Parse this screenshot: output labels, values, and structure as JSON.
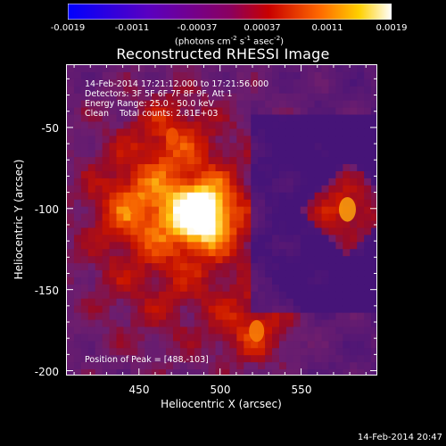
{
  "colorbar": {
    "ticks": [
      "-0.0019",
      "-0.0011",
      "-0.00037",
      "0.00037",
      "0.0011",
      "0.0019"
    ],
    "units_main": "(photons cm",
    "units_exp1": "-2",
    "units_mid1": " s",
    "units_exp2": "-1",
    "units_mid2": " asec",
    "units_exp3": "-2",
    "units_end": ")"
  },
  "title": "Reconstructed RHESSI Image",
  "annotations": {
    "time_range": "14-Feb-2014 17:21:12.000 to 17:21:56.000",
    "detectors": "Detectors: 3F 5F 6F 7F 8F 9F, Att 1",
    "energy": "Energy Range: 25.0 - 50.0 keV",
    "clean": "Clean    Total counts: 2.81E+03",
    "peak": "Position of Peak = [488,-103]"
  },
  "chart_data": {
    "type": "heatmap",
    "title": "Reconstructed RHESSI Image",
    "xlabel": "Heliocentric X (arcsec)",
    "ylabel": "Heliocentric Y (arcsec)",
    "xlim": [
      405,
      597
    ],
    "ylim": [
      -203,
      -11
    ],
    "x_ticks": [
      "450",
      "500",
      "550"
    ],
    "y_ticks": [
      "-50",
      "-100",
      "-150",
      "-200"
    ],
    "color_range": [
      -0.0019,
      0.0019
    ],
    "peak_position": [
      488,
      -103
    ],
    "sources": [
      {
        "x": 488,
        "y": -103,
        "intensity": 1.0
      },
      {
        "x": 578,
        "y": -100,
        "intensity": 0.55
      },
      {
        "x": 522,
        "y": -175,
        "intensity": 0.45
      },
      {
        "x": 447,
        "y": -97,
        "intensity": 0.35
      },
      {
        "x": 470,
        "y": -55,
        "intensity": 0.3
      }
    ]
  },
  "footer": {
    "timestamp": "14-Feb-2014 20:47"
  }
}
